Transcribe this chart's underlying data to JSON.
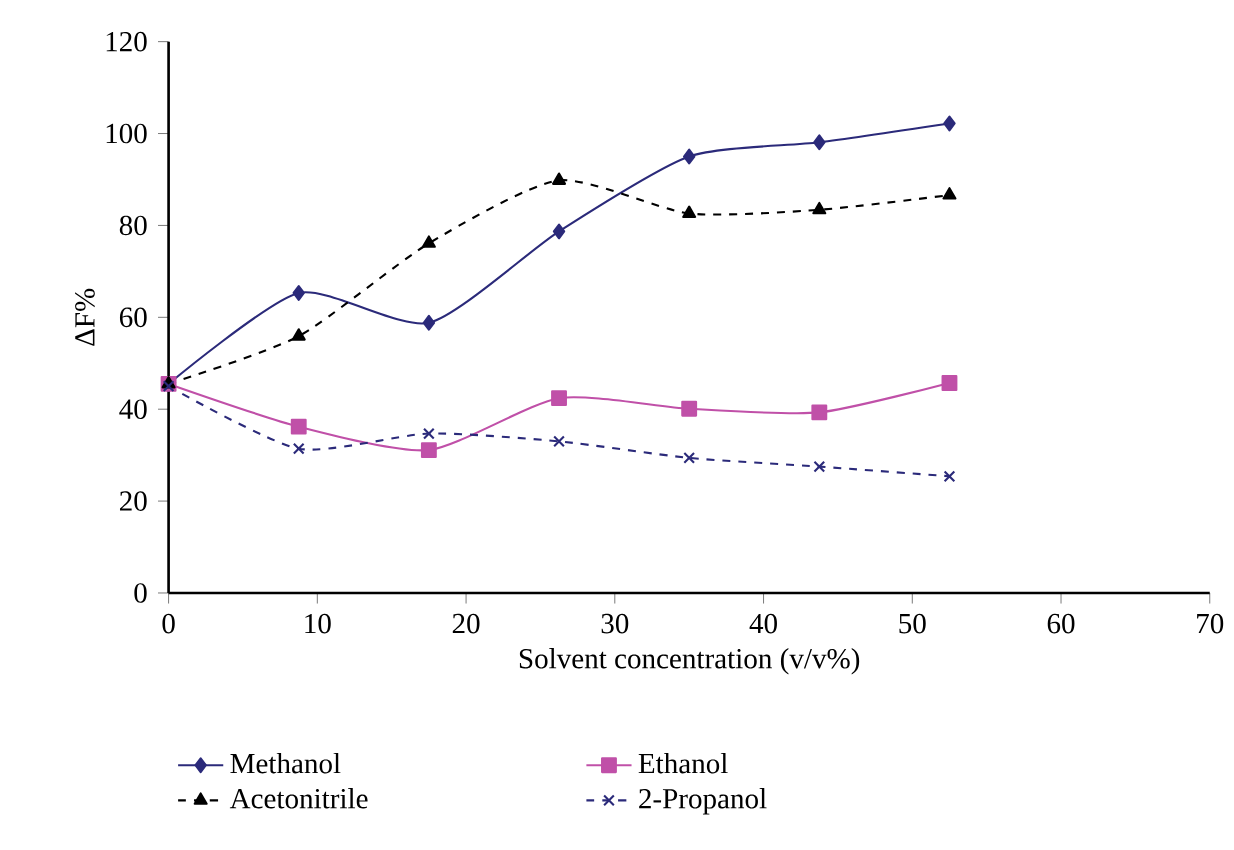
{
  "chart_data": {
    "type": "line",
    "xlabel": "Solvent concentration (v/v%)",
    "ylabel": "ΔF%",
    "x": [
      0,
      8.75,
      17.5,
      26.25,
      35,
      43.75,
      52.5
    ],
    "series": [
      {
        "name": "Methanol",
        "color": "#2b2a7a",
        "marker": "diamond",
        "line_style": "solid",
        "values": [
          45.5,
          65.3,
          58.8,
          78.7,
          95.0,
          98.1,
          102.2
        ]
      },
      {
        "name": "Ethanol",
        "color": "#c050a8",
        "marker": "square",
        "line_style": "solid",
        "values": [
          45.5,
          36.2,
          31.1,
          42.4,
          40.1,
          39.3,
          45.7
        ]
      },
      {
        "name": "Acetonitrile",
        "color": "#000000",
        "marker": "triangle",
        "line_style": "dashed",
        "values": [
          45.5,
          55.9,
          76.1,
          89.8,
          82.6,
          83.4,
          86.6
        ]
      },
      {
        "name": "2-Propanol",
        "color": "#2b2a7a",
        "marker": "cross",
        "line_style": "dashed",
        "values": [
          45,
          31.4,
          34.7,
          33.0,
          29.4,
          27.5,
          25.4
        ]
      }
    ],
    "xlim": [
      0,
      70
    ],
    "xticks": [
      0,
      10,
      20,
      30,
      40,
      50,
      60,
      70
    ],
    "ylim": [
      0,
      120
    ],
    "yticks": [
      0,
      20,
      40,
      60,
      80,
      100,
      120
    ],
    "grid": false,
    "legend": "bottom"
  }
}
